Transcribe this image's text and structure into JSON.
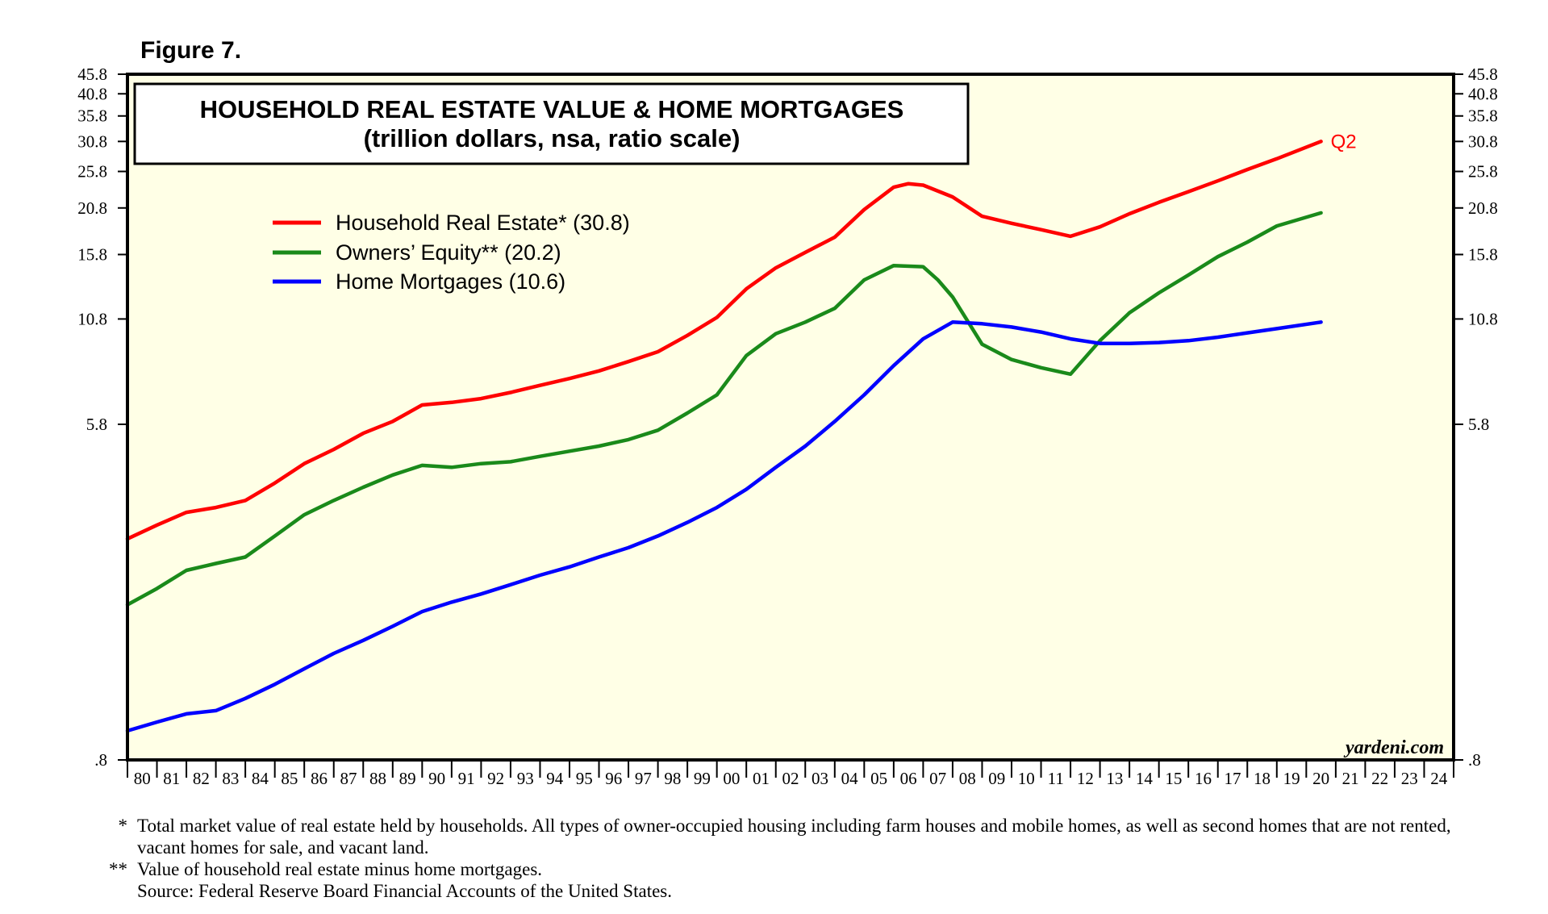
{
  "figure_label": "Figure 7.",
  "source": "yardeni.com",
  "colors": {
    "background": "#ffffe6",
    "real_estate": "#ff0000",
    "equity": "#1a8a1a",
    "mortgages": "#0000ff"
  },
  "footnotes": [
    {
      "mark": "*",
      "text": "Total market value of real estate held by households. All types of owner-occupied housing including farm houses and mobile homes, as well as second homes that are not rented, vacant homes for sale, and vacant land."
    },
    {
      "mark": "**",
      "text": "Value of household real estate minus home mortgages."
    },
    {
      "mark": "",
      "text": "Source: Federal Reserve Board Financial Accounts of the United States."
    }
  ],
  "chart_data": {
    "type": "line",
    "title": "HOUSEHOLD REAL ESTATE VALUE & HOME MORTGAGES",
    "subtitle": "(trillion dollars, nsa, ratio scale)",
    "yscale": "log",
    "ylim": [
      0.8,
      45.8
    ],
    "xlim": [
      1980,
      2025
    ],
    "y_ticks": [
      0.8,
      5.8,
      10.8,
      15.8,
      20.8,
      25.8,
      30.8,
      35.8,
      40.8,
      45.8
    ],
    "y_tick_labels": [
      ".8",
      "5.8",
      "10.8",
      "15.8",
      "20.8",
      "25.8",
      "30.8",
      "35.8",
      "40.8",
      "45.8"
    ],
    "x_tick_labels": [
      "80",
      "81",
      "82",
      "83",
      "84",
      "85",
      "86",
      "87",
      "88",
      "89",
      "90",
      "91",
      "92",
      "93",
      "94",
      "95",
      "96",
      "97",
      "98",
      "99",
      "00",
      "01",
      "02",
      "03",
      "04",
      "05",
      "06",
      "07",
      "08",
      "09",
      "10",
      "11",
      "12",
      "13",
      "14",
      "15",
      "16",
      "17",
      "18",
      "19",
      "20",
      "21",
      "22",
      "23",
      "24"
    ],
    "end_annotation": "Q2",
    "legend_position": "top-left",
    "series": [
      {
        "name": "Household Real Estate* (30.8)",
        "color": "#ff0000",
        "x": [
          1980,
          1981,
          1982,
          1983,
          1984,
          1985,
          1986,
          1987,
          1988,
          1989,
          1990,
          1991,
          1992,
          1993,
          1994,
          1995,
          1996,
          1997,
          1998,
          1999,
          2000,
          2001,
          2002,
          2003,
          2004,
          2005,
          2006,
          2006.5,
          2007,
          2008,
          2009,
          2010,
          2011,
          2012,
          2013,
          2014,
          2015,
          2016,
          2017,
          2018,
          2019,
          2020.5
        ],
        "values": [
          2.95,
          3.2,
          3.45,
          3.55,
          3.7,
          4.1,
          4.6,
          5.0,
          5.5,
          5.9,
          6.5,
          6.6,
          6.75,
          7.0,
          7.3,
          7.6,
          7.95,
          8.4,
          8.9,
          9.8,
          10.9,
          12.9,
          14.6,
          16.0,
          17.5,
          20.6,
          23.5,
          24.0,
          23.8,
          22.2,
          19.8,
          19.0,
          18.3,
          17.6,
          18.6,
          20.1,
          21.5,
          22.9,
          24.4,
          26.1,
          27.8,
          30.8
        ]
      },
      {
        "name": "Owners’ Equity** (20.2)",
        "color": "#1a8a1a",
        "x": [
          1980,
          1981,
          1982,
          1983,
          1984,
          1985,
          1986,
          1987,
          1988,
          1989,
          1990,
          1991,
          1992,
          1993,
          1994,
          1995,
          1996,
          1997,
          1998,
          1999,
          2000,
          2001,
          2002,
          2003,
          2004,
          2005,
          2006,
          2007,
          2007.5,
          2008,
          2009,
          2010,
          2011,
          2012,
          2013,
          2014,
          2015,
          2016,
          2017,
          2018,
          2019,
          2020.5
        ],
        "values": [
          2.0,
          2.2,
          2.45,
          2.55,
          2.65,
          3.0,
          3.4,
          3.7,
          4.0,
          4.3,
          4.55,
          4.5,
          4.6,
          4.65,
          4.8,
          4.95,
          5.1,
          5.3,
          5.6,
          6.2,
          6.9,
          8.7,
          9.9,
          10.6,
          11.5,
          13.6,
          14.8,
          14.7,
          13.6,
          12.3,
          9.3,
          8.5,
          8.1,
          7.8,
          9.5,
          11.2,
          12.6,
          14.0,
          15.6,
          17.0,
          18.7,
          20.2
        ]
      },
      {
        "name": "Home Mortgages (10.6)",
        "color": "#0000ff",
        "x": [
          1980,
          1981,
          1982,
          1983,
          1984,
          1985,
          1986,
          1987,
          1988,
          1989,
          1990,
          1991,
          1992,
          1993,
          1994,
          1995,
          1996,
          1997,
          1998,
          1999,
          2000,
          2001,
          2002,
          2003,
          2004,
          2005,
          2006,
          2007,
          2008,
          2009,
          2010,
          2011,
          2012,
          2013,
          2014,
          2015,
          2016,
          2017,
          2018,
          2019,
          2020.5
        ],
        "values": [
          0.95,
          1.0,
          1.05,
          1.07,
          1.15,
          1.25,
          1.37,
          1.5,
          1.62,
          1.76,
          1.92,
          2.03,
          2.13,
          2.25,
          2.38,
          2.5,
          2.65,
          2.8,
          3.0,
          3.25,
          3.55,
          3.95,
          4.5,
          5.1,
          5.9,
          6.9,
          8.2,
          9.6,
          10.6,
          10.5,
          10.3,
          10.0,
          9.6,
          9.35,
          9.35,
          9.4,
          9.5,
          9.7,
          9.95,
          10.2,
          10.6
        ]
      }
    ]
  }
}
